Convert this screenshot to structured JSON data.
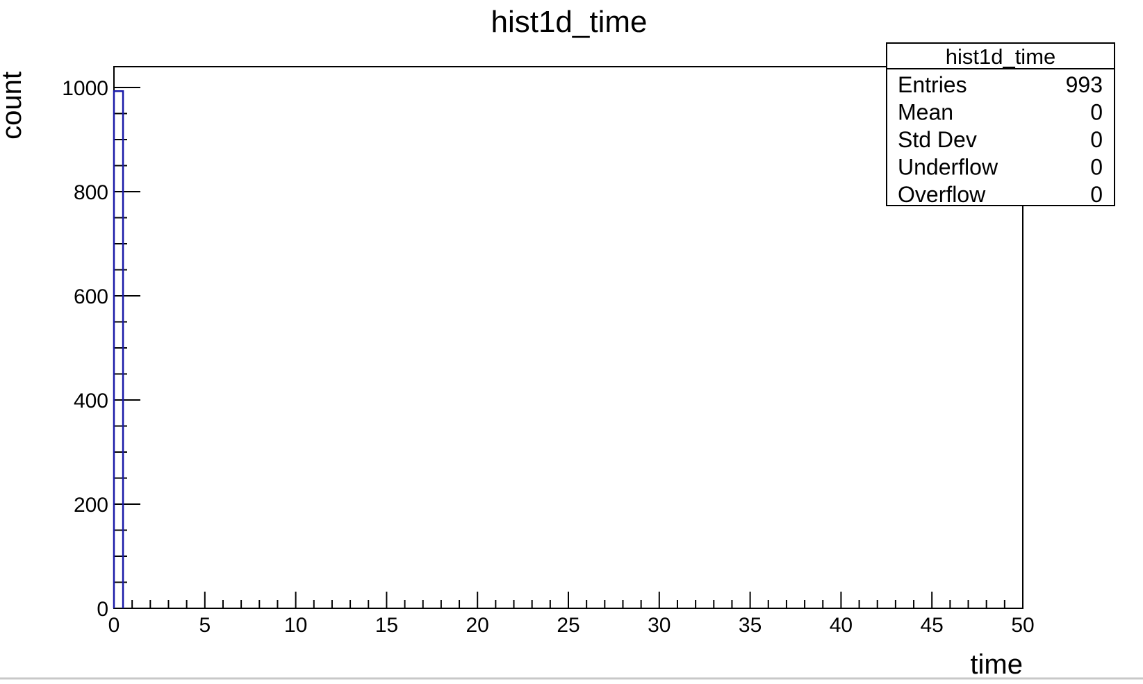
{
  "chart_data": {
    "type": "histogram",
    "title": "hist1d_time",
    "xlabel": "time",
    "ylabel": "count",
    "xlim": [
      0,
      50
    ],
    "ylim": [
      0,
      1040
    ],
    "x_ticks": [
      0,
      5,
      10,
      15,
      20,
      25,
      30,
      35,
      40,
      45,
      50
    ],
    "y_ticks": [
      0,
      200,
      400,
      600,
      800,
      1000
    ],
    "grid": false,
    "bins": [
      {
        "x_low": 0.0,
        "x_high": 0.5,
        "count": 993
      }
    ],
    "line_color": "#1a1aa8",
    "stats_box": {
      "title": "hist1d_time",
      "position": "top-right",
      "rows": [
        {
          "label": "Entries",
          "value": "993"
        },
        {
          "label": "Mean",
          "value": "0"
        },
        {
          "label": "Std Dev",
          "value": "0"
        },
        {
          "label": "Underflow",
          "value": "0"
        },
        {
          "label": "Overflow",
          "value": "0"
        }
      ]
    }
  }
}
